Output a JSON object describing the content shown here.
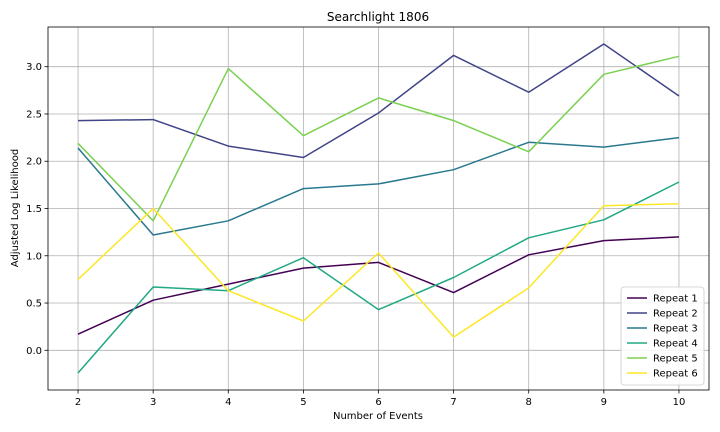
{
  "chart_data": {
    "type": "line",
    "title": "Searchlight 1806",
    "xlabel": "Number of Events",
    "ylabel": "Adjusted Log Likelihood",
    "x": [
      2,
      3,
      4,
      5,
      6,
      7,
      8,
      9,
      10
    ],
    "xlim": [
      1.6,
      10.4
    ],
    "ylim": [
      -0.42,
      3.42
    ],
    "xticks": [
      2,
      3,
      4,
      5,
      6,
      7,
      8,
      9,
      10
    ],
    "yticks": [
      0.0,
      0.5,
      1.0,
      1.5,
      2.0,
      2.5,
      3.0
    ],
    "ytick_labels": [
      "0.0",
      "0.5",
      "1.0",
      "1.5",
      "2.0",
      "2.5",
      "3.0"
    ],
    "grid": true,
    "legend_position": "lower-right",
    "series": [
      {
        "name": "Repeat 1",
        "color": "#440154",
        "values": [
          0.17,
          0.53,
          0.7,
          0.87,
          0.93,
          0.61,
          1.01,
          1.16,
          1.2
        ]
      },
      {
        "name": "Repeat 2",
        "color": "#414487",
        "values": [
          2.43,
          2.44,
          2.16,
          2.04,
          2.51,
          3.12,
          2.73,
          3.24,
          2.69
        ]
      },
      {
        "name": "Repeat 3",
        "color": "#2a788e",
        "values": [
          2.14,
          1.22,
          1.37,
          1.71,
          1.76,
          1.91,
          2.2,
          2.15,
          2.25
        ]
      },
      {
        "name": "Repeat 4",
        "color": "#22a884",
        "values": [
          -0.24,
          0.67,
          0.63,
          0.98,
          0.43,
          0.77,
          1.19,
          1.38,
          1.78
        ]
      },
      {
        "name": "Repeat 5",
        "color": "#7ad151",
        "values": [
          2.19,
          1.37,
          2.98,
          2.27,
          2.67,
          2.43,
          2.1,
          2.92,
          3.11
        ]
      },
      {
        "name": "Repeat 6",
        "color": "#fde725",
        "values": [
          0.75,
          1.5,
          0.63,
          0.31,
          1.03,
          0.14,
          0.66,
          1.53,
          1.55
        ]
      }
    ]
  }
}
